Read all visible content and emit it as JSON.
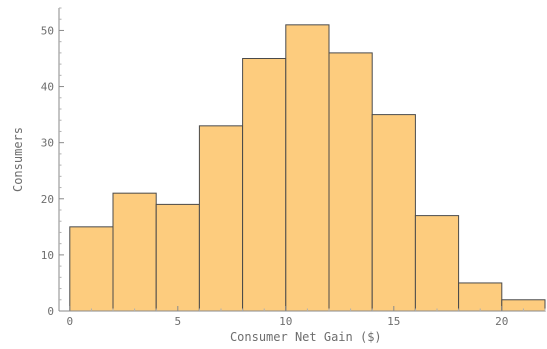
{
  "chart_data": {
    "type": "bar",
    "subtype": "histogram",
    "xlabel": "Consumer Net Gain ($)",
    "ylabel": "Consumers",
    "bin_edges": [
      0,
      2,
      4,
      6,
      8,
      10,
      12,
      14,
      16,
      18,
      20,
      22
    ],
    "values": [
      15,
      21,
      19,
      33,
      45,
      51,
      46,
      35,
      17,
      5,
      2
    ],
    "xlim": [
      -0.5,
      22
    ],
    "ylim": [
      0,
      54
    ],
    "xticks": [
      0,
      5,
      10,
      15,
      20
    ],
    "yticks": [
      0,
      10,
      20,
      30,
      40,
      50
    ],
    "grid": false,
    "colors": {
      "bar_fill": "#fdcc7e",
      "bar_stroke": "#4a4a4a",
      "axis": "#8a8a8a"
    }
  }
}
